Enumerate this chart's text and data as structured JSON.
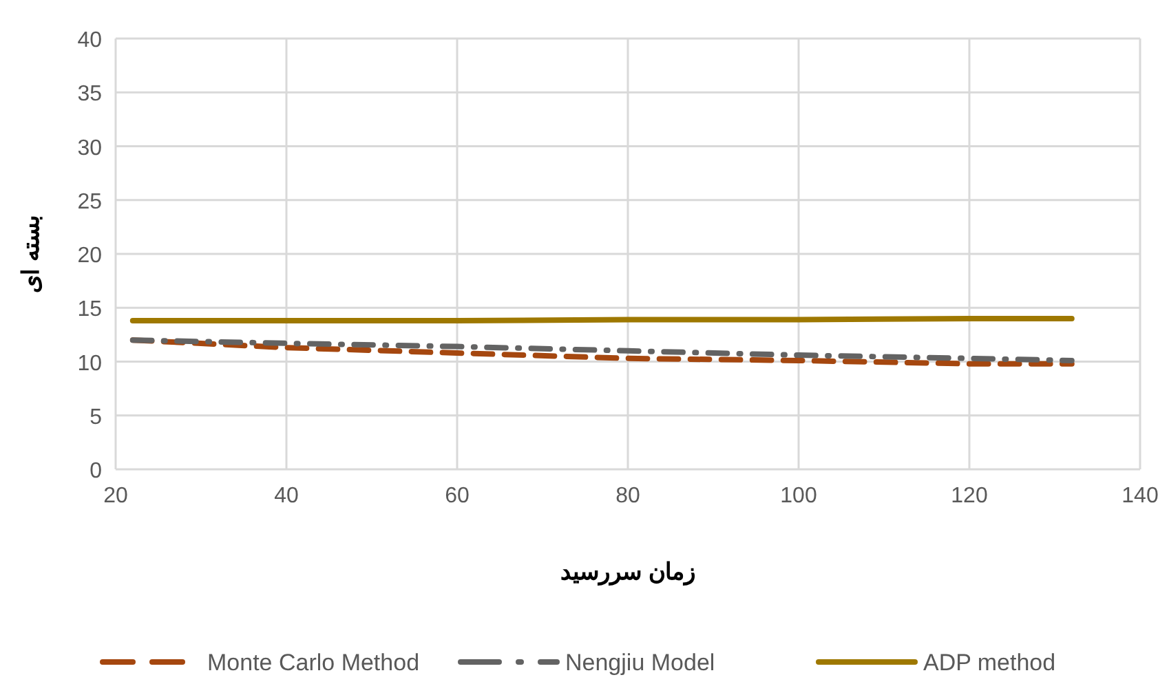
{
  "chart_data": {
    "type": "line",
    "xlabel": "زمان سررسید",
    "ylabel": "بسته ای",
    "x": [
      22,
      40,
      60,
      80,
      100,
      120,
      132
    ],
    "series": [
      {
        "name": "Monte Carlo Method",
        "color": "#a5470f",
        "line_style": "dashed",
        "values": [
          12.0,
          11.3,
          10.8,
          10.3,
          10.1,
          9.8,
          9.8
        ]
      },
      {
        "name": "Nengjiu Model",
        "color": "#636363",
        "line_style": "dashdot",
        "values": [
          12.0,
          11.7,
          11.4,
          11.0,
          10.6,
          10.3,
          10.1
        ]
      },
      {
        "name": "ADP method",
        "color": "#9e7800",
        "line_style": "solid",
        "values": [
          13.8,
          13.8,
          13.8,
          13.9,
          13.9,
          14.0,
          14.0
        ]
      }
    ],
    "xlim": [
      20,
      140
    ],
    "xticks": [
      20,
      40,
      60,
      80,
      100,
      120,
      140
    ],
    "ylim": [
      0,
      40
    ],
    "yticks": [
      0,
      5,
      10,
      15,
      20,
      25,
      30,
      35,
      40
    ],
    "grid": true,
    "legend": "bottom",
    "marker": "none"
  }
}
